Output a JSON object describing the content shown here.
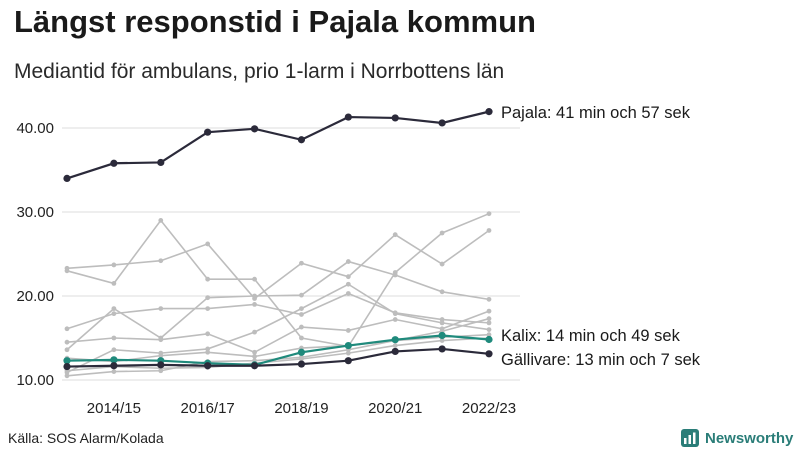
{
  "title": "Längst responstid i Pajala kommun",
  "subtitle": "Mediantid för ambulans, prio 1-larm i Norrbottens län",
  "source": "Källa: SOS Alarm/Kolada",
  "brand": "Newsworthy",
  "colors": {
    "highlight_dark": "#2b2a3a",
    "highlight_teal": "#1f8a7c",
    "background_series": "#bdbdbd",
    "grid": "#dcdcdc",
    "brand": "#2a7d78"
  },
  "chart_data": {
    "type": "line",
    "x": [
      "2013/14",
      "2014/15",
      "2015/16",
      "2016/17",
      "2017/18",
      "2018/19",
      "2019/20",
      "2020/21",
      "2021/22",
      "2022/23"
    ],
    "x_tick_labels": [
      "2014/15",
      "2016/17",
      "2018/19",
      "2020/21",
      "2022/23"
    ],
    "y_ticks": [
      10,
      20,
      30,
      40
    ],
    "y_tick_labels": [
      "10.00",
      "20.00",
      "30.00",
      "40.00"
    ],
    "ylim": [
      9,
      45
    ],
    "grid": true,
    "series": [
      {
        "name": "Pajala",
        "label": "Pajala: 41 min och 57 sek",
        "highlight": "dark",
        "values": [
          34.0,
          35.8,
          35.9,
          39.5,
          39.9,
          38.6,
          41.3,
          41.2,
          40.6,
          41.95
        ]
      },
      {
        "name": "Kalix",
        "label": "Kalix: 14 min och 49 sek",
        "highlight": "teal",
        "values": [
          12.3,
          12.4,
          12.3,
          12.0,
          11.8,
          13.3,
          14.1,
          14.8,
          15.3,
          14.82
        ]
      },
      {
        "name": "Gällivare",
        "label": "Gällivare: 13 min och 7 sek",
        "highlight": "dark",
        "values": [
          11.6,
          11.7,
          11.8,
          11.7,
          11.7,
          11.9,
          12.3,
          13.4,
          13.7,
          13.12
        ]
      },
      {
        "name": "",
        "values": [
          23.3,
          23.7,
          24.2,
          26.2,
          19.7,
          23.9,
          22.3,
          27.3,
          23.8,
          27.8
        ]
      },
      {
        "name": "",
        "values": [
          23.0,
          21.5,
          29.0,
          22.0,
          22.0,
          15.0,
          14.0,
          22.8,
          27.5,
          29.8
        ]
      },
      {
        "name": "",
        "values": [
          16.1,
          17.9,
          18.5,
          18.5,
          19.0,
          17.8,
          20.3,
          18.0,
          17.2,
          16.8
        ]
      },
      {
        "name": "",
        "values": [
          13.6,
          18.5,
          15.0,
          19.8,
          20.0,
          20.1,
          24.1,
          22.5,
          20.5,
          19.6
        ]
      },
      {
        "name": "",
        "values": [
          14.5,
          15.0,
          14.8,
          15.5,
          13.3,
          16.3,
          15.9,
          17.2,
          16.1,
          18.2
        ]
      },
      {
        "name": "",
        "values": [
          10.9,
          13.6,
          13.2,
          13.7,
          15.7,
          18.5,
          21.4,
          17.9,
          16.8,
          16.0
        ]
      },
      {
        "name": "",
        "values": [
          10.5,
          11.0,
          11.1,
          12.2,
          12.3,
          12.7,
          13.6,
          14.7,
          15.8,
          17.3
        ]
      },
      {
        "name": "",
        "values": [
          12.6,
          12.2,
          12.9,
          13.3,
          12.8,
          13.8,
          14.1,
          14.7,
          15.1,
          15.4
        ]
      },
      {
        "name": "",
        "values": [
          11.1,
          11.6,
          11.4,
          11.5,
          12.0,
          12.5,
          13.2,
          14.1,
          14.7,
          15.0
        ]
      }
    ]
  }
}
